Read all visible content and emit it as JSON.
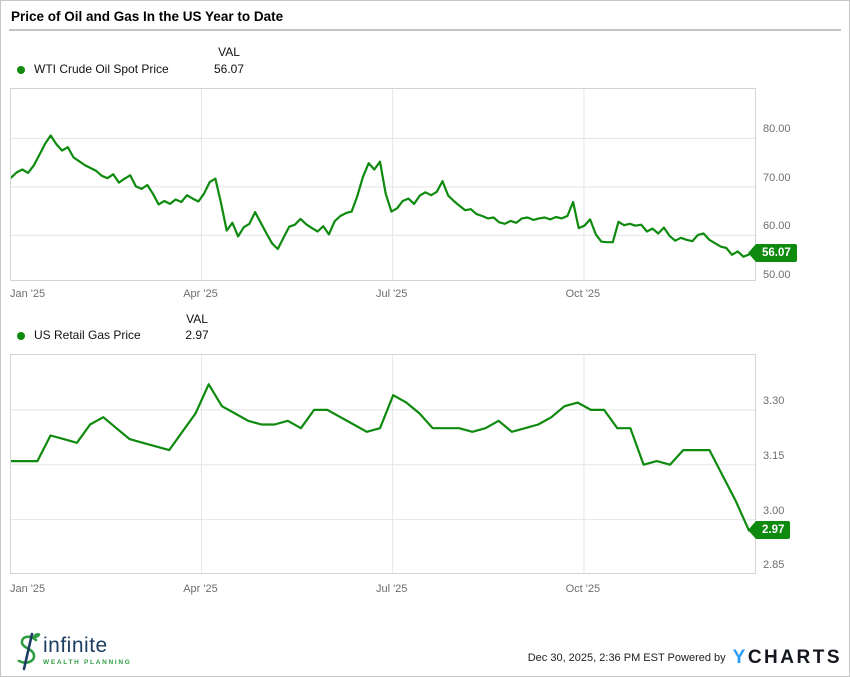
{
  "title": "Price of Oil and Gas In the US Year to Date",
  "chart_data": [
    {
      "type": "line",
      "series_name": "WTI Crude Oil Spot Price",
      "val_header": "VAL",
      "current_value": 56.07,
      "current_value_label": "56.07",
      "color": "#0e8a0e",
      "ylim": [
        50.8,
        90.2
      ],
      "grid": true,
      "legend_position": "top-left",
      "y_ticks": [
        {
          "value": 80,
          "label": "80.00"
        },
        {
          "value": 70,
          "label": "70.00"
        },
        {
          "value": 60,
          "label": "60.00"
        },
        {
          "value": 50,
          "label": "50.00"
        }
      ],
      "x_ticks": [
        {
          "label": "Jan '25",
          "pos": 0,
          "align": "left"
        },
        {
          "label": "Apr '25",
          "pos": 0.256
        },
        {
          "label": "Jul '25",
          "pos": 0.513
        },
        {
          "label": "Oct '25",
          "pos": 0.77
        }
      ],
      "values": [
        71.9,
        73.0,
        73.6,
        72.9,
        74.4,
        76.6,
        78.9,
        80.6,
        78.8,
        77.5,
        78.2,
        76.1,
        75.3,
        74.5,
        73.9,
        73.3,
        72.3,
        71.8,
        72.6,
        70.9,
        71.7,
        72.4,
        70.1,
        69.6,
        70.4,
        68.6,
        66.4,
        67.1,
        66.5,
        67.4,
        66.9,
        68.3,
        67.6,
        67.0,
        68.6,
        71.0,
        71.7,
        66.6,
        61.0,
        62.6,
        59.8,
        61.7,
        62.4,
        64.8,
        62.6,
        60.4,
        58.3,
        57.2,
        59.5,
        61.8,
        62.2,
        63.4,
        62.3,
        61.5,
        60.8,
        61.9,
        60.2,
        62.9,
        64.0,
        64.6,
        64.9,
        68.1,
        72.1,
        74.9,
        73.6,
        75.2,
        68.6,
        64.9,
        65.6,
        67.1,
        67.6,
        66.5,
        68.2,
        68.9,
        68.3,
        69.0,
        71.2,
        68.2,
        67.1,
        66.1,
        65.2,
        65.4,
        64.4,
        64.0,
        63.5,
        63.7,
        62.7,
        62.4,
        63.0,
        62.6,
        63.5,
        63.7,
        63.2,
        63.5,
        63.7,
        63.3,
        63.8,
        63.5,
        64.0,
        66.9,
        61.5,
        62.0,
        63.3,
        60.2,
        58.7,
        58.6,
        58.6,
        62.8,
        62.1,
        62.4,
        62.0,
        62.2,
        60.8,
        61.4,
        60.4,
        61.6,
        59.9,
        58.9,
        59.5,
        59.1,
        58.8,
        60.1,
        60.4,
        59.1,
        58.4,
        57.7,
        57.4,
        56.0,
        56.7,
        55.6,
        56.07
      ]
    },
    {
      "type": "line",
      "series_name": "US Retail Gas Price",
      "val_header": "VAL",
      "current_value": 2.97,
      "current_value_label": "2.97",
      "color": "#0e8a0e",
      "ylim": [
        2.854,
        3.45
      ],
      "grid": true,
      "legend_position": "top-left",
      "y_ticks": [
        {
          "value": 3.3,
          "label": "3.30"
        },
        {
          "value": 3.15,
          "label": "3.15"
        },
        {
          "value": 3.0,
          "label": "3.00"
        },
        {
          "value": 2.85,
          "label": "2.85"
        }
      ],
      "x_ticks": [
        {
          "label": "Jan '25",
          "pos": 0,
          "align": "left"
        },
        {
          "label": "Apr '25",
          "pos": 0.256
        },
        {
          "label": "Jul '25",
          "pos": 0.513
        },
        {
          "label": "Oct '25",
          "pos": 0.77
        }
      ],
      "values": [
        3.16,
        3.16,
        3.16,
        3.23,
        3.22,
        3.21,
        3.26,
        3.28,
        3.25,
        3.22,
        3.21,
        3.2,
        3.19,
        3.24,
        3.29,
        3.37,
        3.31,
        3.29,
        3.27,
        3.26,
        3.26,
        3.27,
        3.25,
        3.3,
        3.3,
        3.28,
        3.26,
        3.24,
        3.25,
        3.34,
        3.32,
        3.29,
        3.25,
        3.25,
        3.25,
        3.24,
        3.25,
        3.27,
        3.24,
        3.25,
        3.26,
        3.28,
        3.31,
        3.32,
        3.3,
        3.3,
        3.25,
        3.25,
        3.15,
        3.16,
        3.15,
        3.19,
        3.19,
        3.19,
        3.12,
        3.05,
        2.97
      ]
    }
  ],
  "footer": {
    "timestamp": "Dec 30, 2025, 2:36 PM EST",
    "powered_by": "Powered by",
    "brand_y": "Y",
    "brand_rest": "CHARTS",
    "logo_name": "infinite",
    "logo_tagline": "WEALTH PLANNING"
  }
}
